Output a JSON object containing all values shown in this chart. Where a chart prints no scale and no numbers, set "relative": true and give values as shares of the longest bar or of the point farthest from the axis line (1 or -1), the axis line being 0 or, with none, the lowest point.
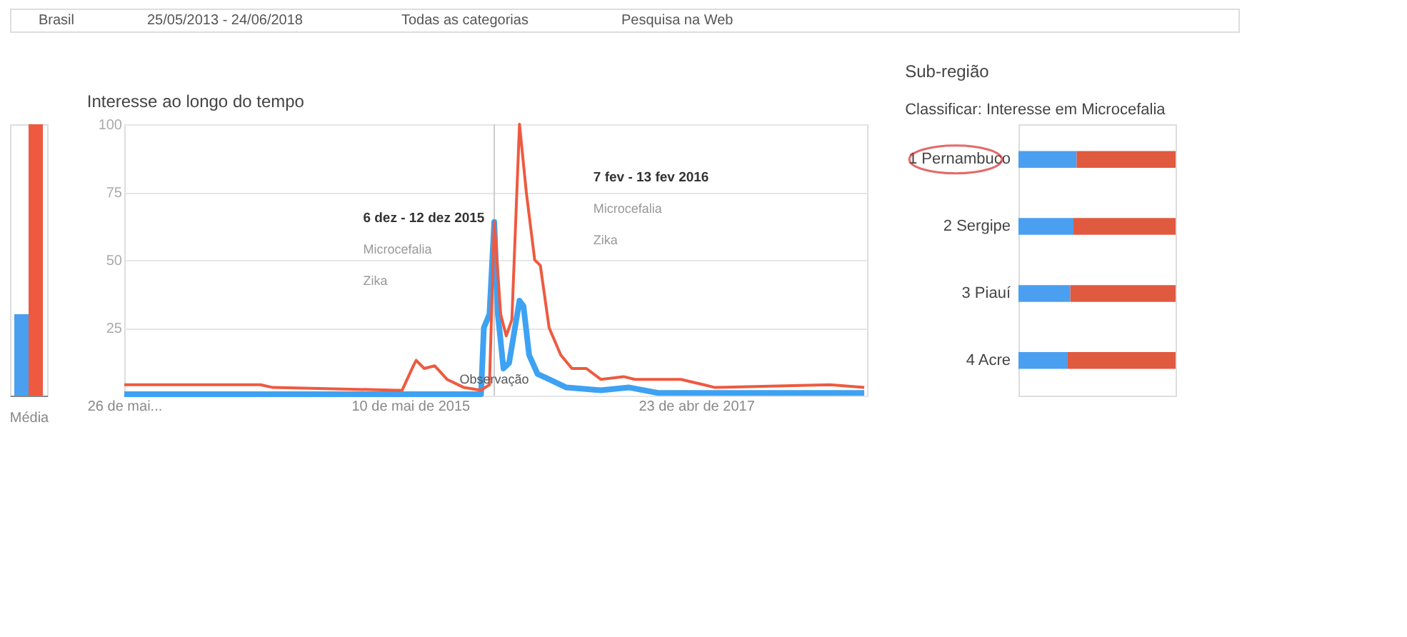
{
  "chart_data": [
    {
      "type": "other",
      "annotations": [
        "Brasil",
        "25/05/2013 - 24/06/2018",
        "Todas as categorias",
        "Pesquisa na Web"
      ]
    },
    {
      "type": "bar",
      "xlabel": "Média",
      "categories": [
        null,
        null
      ],
      "values": [
        0.3,
        1
      ],
      "colors": [
        "#4a9ff0",
        "#ee5a40"
      ],
      "relative": true
    },
    {
      "type": "line",
      "title": "Interesse ao longo do tempo",
      "annotations": [
        "6 dez - 12 dez 2015",
        "Microcefalia",
        "Zika",
        "7 fev - 13 fev 2016",
        "Microcefalia",
        "Zika",
        {
          "text": "Observação",
          "x": "2015-12-06",
          "y": 4
        }
      ],
      "series": [
        {
          "color": "#ee5a40",
          "x": [
            "2013-05-26",
            "2014-01-01",
            "2014-05-01",
            "2014-06-01",
            "2015-04-06",
            "2015-04-20",
            "2015-05-18",
            "2015-05-25",
            "2015-06-14",
            "2015-07-10",
            "2015-08-10",
            "2015-09-21",
            "2015-11-03",
            "2015-11-24",
            "2015-12-06",
            "2015-12-22",
            "2016-01-05",
            "2016-01-19",
            "2016-02-07",
            "2016-02-24",
            "2016-03-16",
            "2016-03-30",
            "2016-04-21",
            "2016-05-20",
            "2016-06-17",
            "2016-07-23",
            "2016-08-28",
            "2016-10-24",
            "2016-11-21",
            "2017-03-16",
            "2017-05-12",
            "2017-06-09",
            "2018-03-23",
            "2018-06-17"
          ],
          "values": [
            4,
            4,
            4,
            3,
            2,
            2,
            11,
            13,
            10,
            11,
            6,
            3,
            2,
            4,
            64,
            30,
            22,
            28,
            100,
            75,
            50,
            48,
            25,
            15,
            10,
            10,
            6,
            7,
            6,
            6,
            4,
            3,
            4,
            3
          ]
        },
        {
          "color": "#3ea2f2",
          "x": [
            "2013-05-26",
            "2015-11-03",
            "2015-11-10",
            "2015-11-24",
            "2015-12-06",
            "2015-12-15",
            "2015-12-29",
            "2016-01-12",
            "2016-02-07",
            "2016-02-17",
            "2016-03-02",
            "2016-03-23",
            "2016-04-21",
            "2016-06-03",
            "2016-08-28",
            "2016-11-07",
            "2017-01-18",
            "2018-06-17"
          ],
          "values": [
            0.5,
            0.5,
            25,
            30,
            64,
            30,
            10,
            12,
            35,
            33,
            15,
            8,
            6,
            3,
            2,
            3,
            1,
            1
          ]
        }
      ],
      "xlim": [
        "2013-05-26",
        "2018-06-24"
      ],
      "xticks": [
        {
          "value": "2013-05-26",
          "label": "26 de mai..."
        },
        {
          "value": "2015-05-10",
          "label": "10 de mai de 2015"
        },
        {
          "value": "2017-04-23",
          "label": "23 de abr de 2017"
        }
      ],
      "ylim": [
        0,
        100
      ],
      "yticks": [
        {
          "value": 0,
          "label": null
        },
        25,
        50,
        75,
        100
      ],
      "grid": "y",
      "ref_lines": [
        {
          "axis": "x",
          "value": "2015-12-06",
          "label": null,
          "color": "#cccccc"
        }
      ]
    },
    {
      "type": "bar",
      "orientation": "horizontal",
      "stacked": true,
      "relative": true,
      "title": "Sub-região",
      "subtitle": "Classificar: Interesse em Microcefalia",
      "categories": [
        "1 Pernambuco",
        "2 Sergipe",
        "3 Piauí",
        "4 Acre"
      ],
      "series": [
        {
          "color": "#4a9ff0",
          "values": [
            0.37,
            0.35,
            0.33,
            0.31
          ]
        },
        {
          "color": "#e05a40",
          "values": [
            0.63,
            0.65,
            0.67,
            0.69
          ]
        }
      ]
    }
  ]
}
